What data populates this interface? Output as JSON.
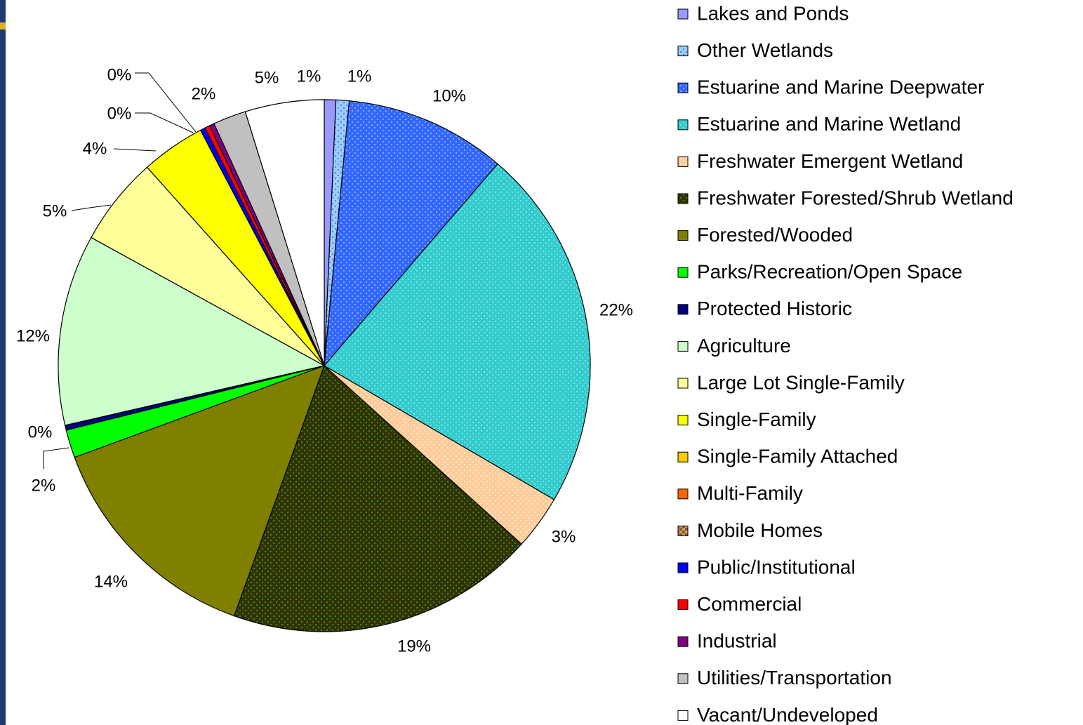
{
  "chart_data": {
    "type": "pie",
    "categories": [
      "Lakes and Ponds",
      "Other Wetlands",
      "Estuarine and Marine Deepwater",
      "Estuarine and Marine Wetland",
      "Freshwater Emergent Wetland",
      "Freshwater Forested/Shrub Wetland",
      "Forested/Wooded",
      "Parks/Recreation/Open Space",
      "Protected Historic",
      "Agriculture",
      "Large Lot Single-Family",
      "Single-Family",
      "Single-Family Attached",
      "Multi-Family",
      "Mobile Homes",
      "Public/Institutional",
      "Commercial",
      "Industrial",
      "Utilities/Transportation",
      "Vacant/Undeveloped"
    ],
    "values": [
      0.7,
      0.8,
      9.8,
      22.1,
      3.3,
      18.8,
      13.9,
      1.7,
      0.3,
      11.6,
      5.4,
      3.9,
      0,
      0,
      0,
      0.3,
      0.3,
      0.3,
      2.0,
      4.8
    ],
    "value_labels": [
      "1%",
      "1%",
      "10%",
      "22%",
      "3%",
      "19%",
      "14%",
      "2%",
      "0%",
      "12%",
      "5%",
      "4%",
      null,
      null,
      null,
      "0%",
      "0%",
      null,
      "2%",
      "5%"
    ],
    "colors": [
      "#9999ff",
      "#99ccff",
      "#3366ff",
      "#33cccc",
      "#ffcc99",
      "#333300",
      "#808000",
      "#00ff00",
      "#000080",
      "#ccffcc",
      "#ffff99",
      "#ffff00",
      "#ffcc00",
      "#ff6600",
      "#cc9966",
      "#0000ff",
      "#ff0000",
      "#800080",
      "#c0c0c0",
      "#ffffff"
    ],
    "patterns": [
      null,
      "dots",
      "dots",
      "dots",
      "dots",
      "dots",
      null,
      null,
      null,
      null,
      null,
      null,
      null,
      null,
      "check",
      null,
      null,
      null,
      null,
      null
    ],
    "legend": "right"
  }
}
